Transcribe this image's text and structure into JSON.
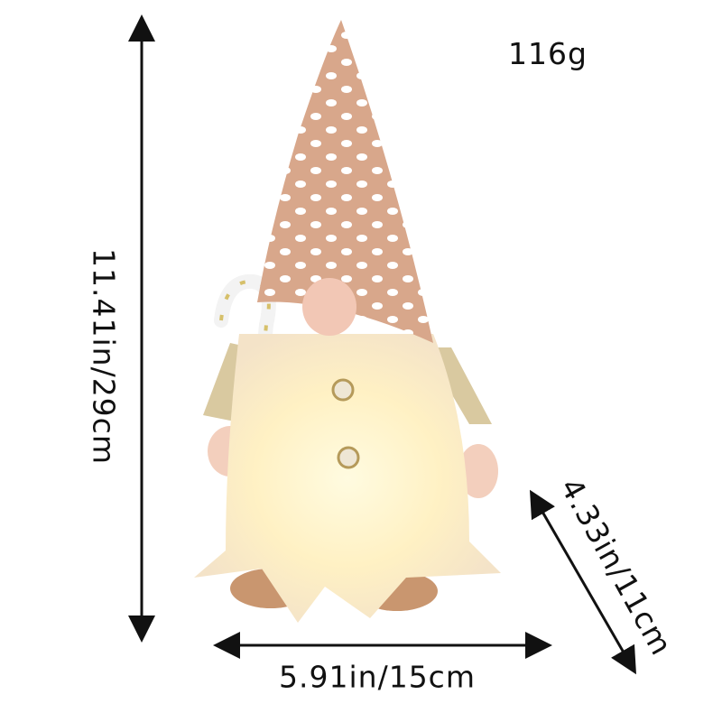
{
  "product": {
    "weight": "116g",
    "height": "11.41in/29cm",
    "width": "5.91in/15cm",
    "depth": "4.33in/11cm"
  },
  "colors": {
    "hat": "#d9a88c",
    "beard_glow": "#fff6d0",
    "arrow": "#111111"
  }
}
